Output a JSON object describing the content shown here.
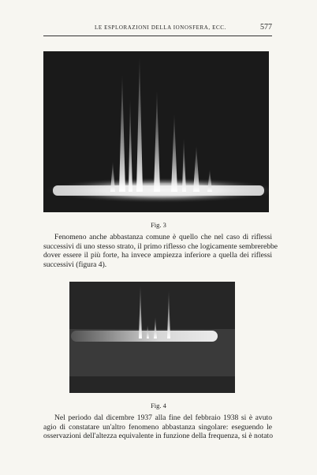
{
  "header": {
    "title": "LE ESPLORAZIONI DELLA IONOSFERA, ECC.",
    "page_number": "577"
  },
  "figures": [
    {
      "caption": "Fig. 3"
    },
    {
      "caption": "Fig. 4"
    }
  ],
  "paragraphs": [
    {
      "lines": [
        "Fenomeno anche abbastanza comune è quello che nel caso di riflessi",
        "successivi di uno stesso strato, il primo riflesso che logicamente sembrerebbe",
        "dover essere il più forte, ha invece ampiezza inferiore a quella dei riflessi",
        "successivi (figura 4)."
      ]
    },
    {
      "lines": [
        "Nel periodo dal dicembre 1937 alla fine del febbraio 1938 si è avuto",
        "agio di constatare un'altro fenomeno abbastanza singolare: eseguendo le",
        "osservazioni dell'altezza equivalente in funzione della frequenza, si è notato"
      ]
    }
  ]
}
